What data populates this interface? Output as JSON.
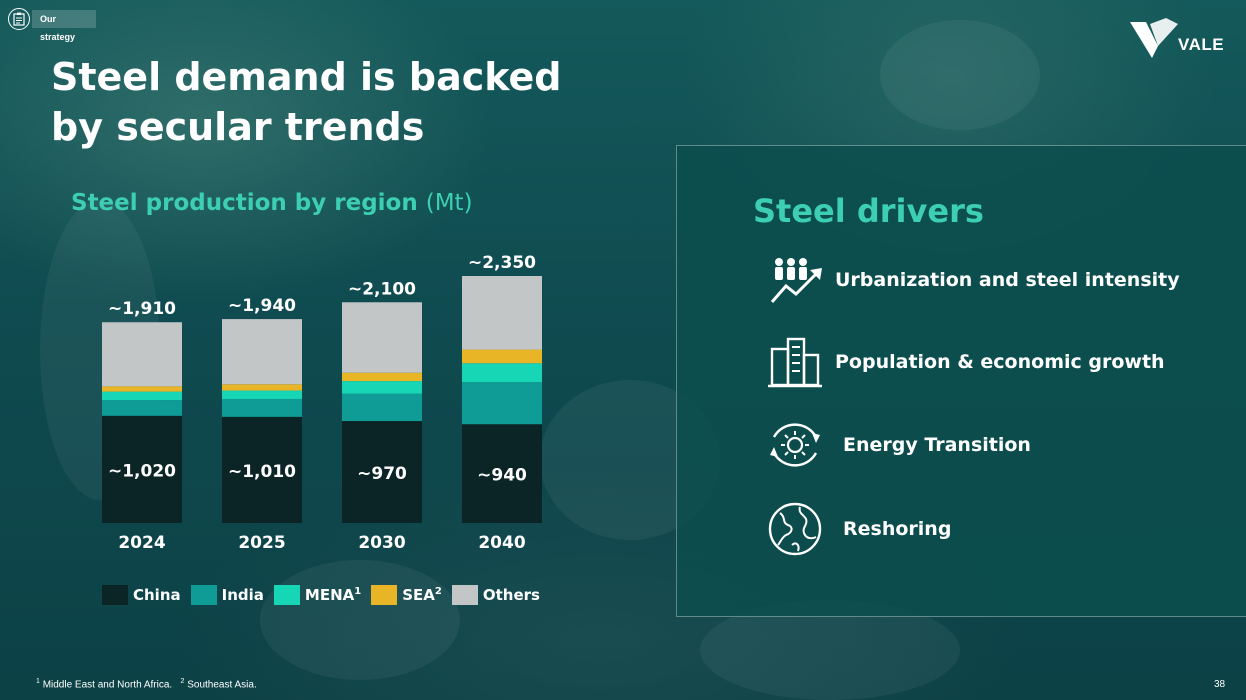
{
  "header": {
    "section_tag": "Our strategy",
    "title_line1": "Steel demand is backed",
    "title_line2": "by secular trends",
    "logo_text": "VALE"
  },
  "chart_header": {
    "title": "Steel production by region",
    "unit": "(Mt)"
  },
  "chart_data": {
    "type": "bar",
    "stacked": true,
    "title": "Steel production by region (Mt)",
    "categories": [
      "2024",
      "2025",
      "2030",
      "2040"
    ],
    "totals": [
      1910,
      1940,
      2100,
      2350
    ],
    "total_labels": [
      "~1,910",
      "~1,940",
      "~2,100",
      "~2,350"
    ],
    "series": [
      {
        "name": "China",
        "color": "#0b2425",
        "values": [
          1020,
          1010,
          970,
          940
        ],
        "labels": [
          "~1,020",
          "~1,010",
          "~970",
          "~940"
        ]
      },
      {
        "name": "India",
        "color": "#0f9b96",
        "values": [
          150,
          170,
          260,
          400
        ]
      },
      {
        "name": "MENA",
        "color": "#16d6b5",
        "values": [
          80,
          80,
          120,
          180
        ]
      },
      {
        "name": "SEA",
        "color": "#e8b527",
        "values": [
          50,
          60,
          80,
          130
        ]
      },
      {
        "name": "Others",
        "color": "#c3c6c7",
        "values": [
          610,
          620,
          670,
          700
        ]
      }
    ],
    "ylim": [
      0,
      2350
    ],
    "legend": "bottom"
  },
  "legend": {
    "items": [
      {
        "label": "China",
        "sup": "",
        "color": "#0b2425"
      },
      {
        "label": "India",
        "sup": "",
        "color": "#0f9b96"
      },
      {
        "label": "MENA",
        "sup": "1",
        "color": "#16d6b5"
      },
      {
        "label": "SEA",
        "sup": "2",
        "color": "#e8b527"
      },
      {
        "label": "Others",
        "sup": "",
        "color": "#c3c6c7"
      }
    ]
  },
  "drivers": {
    "title": "Steel drivers",
    "items": [
      {
        "label": "Urbanization and steel intensity",
        "icon": "urbanization-icon"
      },
      {
        "label": "Population & economic growth",
        "icon": "buildings-icon"
      },
      {
        "label": "Energy Transition",
        "icon": "energy-transition-icon"
      },
      {
        "label": "Reshoring",
        "icon": "globe-icon"
      }
    ]
  },
  "footer": {
    "note1_sup": "1",
    "note1": "Middle East and North Africa.",
    "note2_sup": "2",
    "note2": "Southeast Asia.",
    "page_number": "38"
  }
}
